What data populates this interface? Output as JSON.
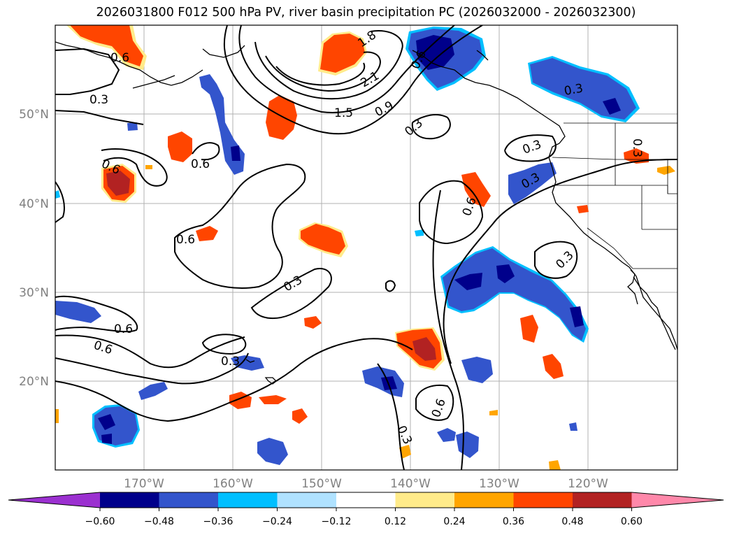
{
  "title": "2026031800 F012 500 hPa PV, river basin precipitation PC (2026032000 - 2026032300)",
  "map": {
    "lat_ticks": [
      "50°N",
      "40°N",
      "30°N",
      "20°N"
    ],
    "lon_ticks": [
      "170°W",
      "160°W",
      "150°W",
      "140°W",
      "130°W",
      "120°W"
    ],
    "contour_labels": [
      "0.6",
      "0.3",
      "1.8",
      "2.1",
      "1.5",
      "0.9",
      "0.3",
      "0.6",
      "0.6",
      "0.3",
      "0.6",
      "0.6",
      "0.3",
      "0.6",
      "0.3",
      "0.3",
      "0.6",
      "0.3",
      "0.3",
      "0.6",
      "0.3",
      "0.3",
      "0.6"
    ]
  },
  "colorbar": {
    "ticks": [
      "−0.60",
      "−0.48",
      "−0.36",
      "−0.24",
      "−0.12",
      "0.12",
      "0.24",
      "0.36",
      "0.48",
      "0.60"
    ],
    "colors": [
      "#9b30d0",
      "#00008b",
      "#3355cc",
      "#00bfff",
      "#b0e2ff",
      "#ffffff",
      "#ffeb8a",
      "#ffa500",
      "#ff4500",
      "#b22222",
      "#ff88aa"
    ]
  }
}
